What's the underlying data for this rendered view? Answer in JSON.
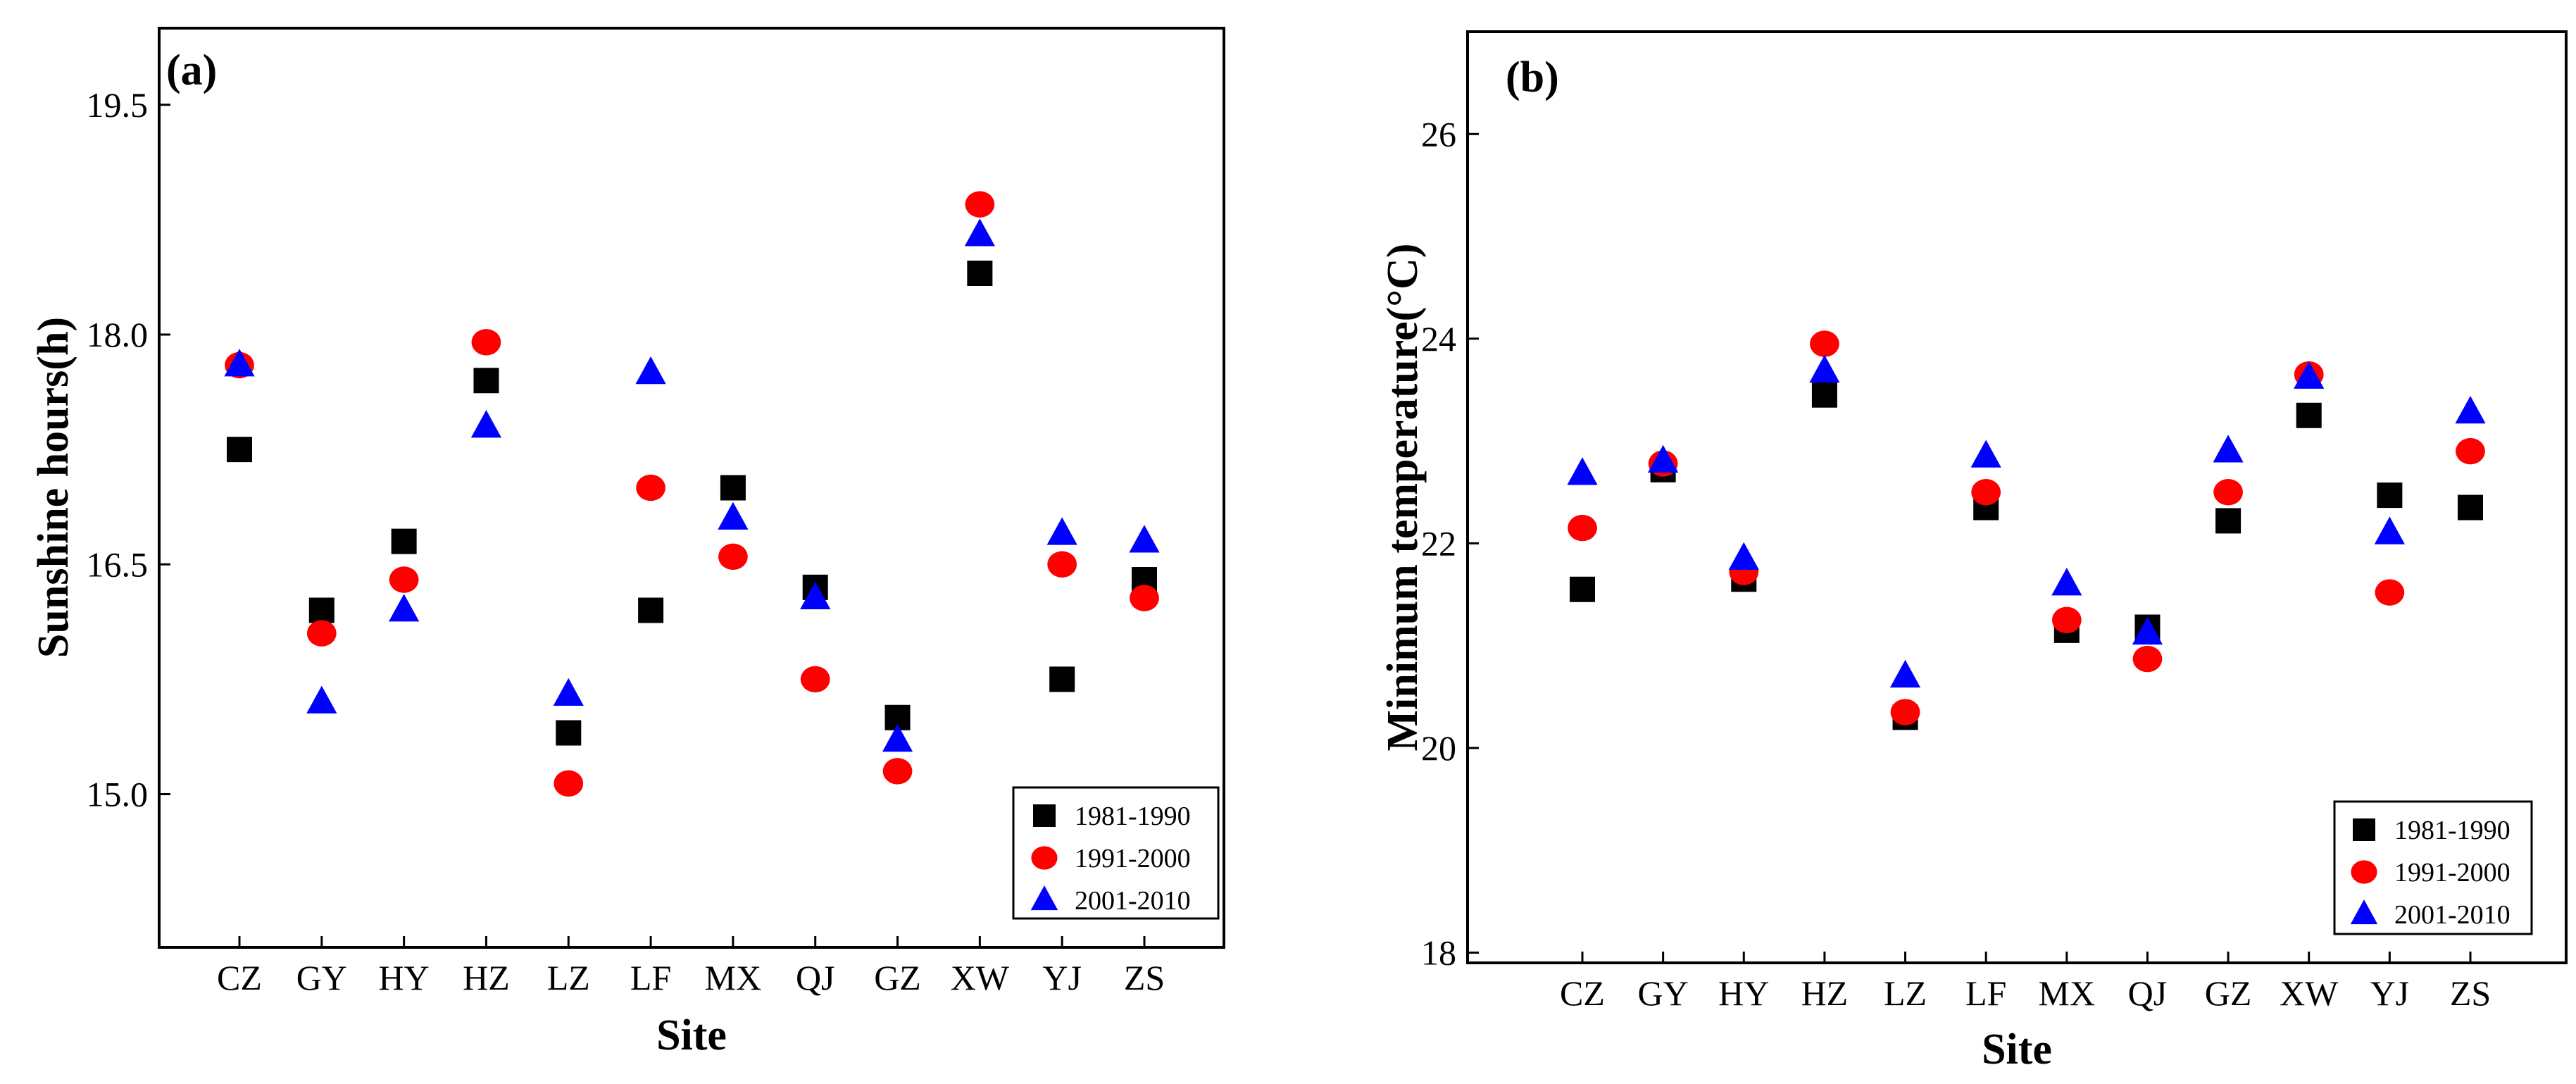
{
  "chart_data": [
    {
      "type": "scatter",
      "panel_label": "(a)",
      "title": "",
      "xlabel": "Site",
      "ylabel": "Sunshine hours(h)",
      "categories": [
        "CZ",
        "GY",
        "HY",
        "HZ",
        "LZ",
        "LF",
        "MX",
        "QJ",
        "GZ",
        "XW",
        "YJ",
        "ZS"
      ],
      "ylim": [
        14.0,
        20.0
      ],
      "yticks": [
        15.0,
        16.5,
        18.0,
        19.5
      ],
      "ytick_labels": [
        "15.0",
        "16.5",
        "18.0",
        "19.5"
      ],
      "grid": false,
      "legend_position": "bottom-right",
      "series": [
        {
          "name": "1981-1990",
          "marker": "square",
          "color": "#000000",
          "values": [
            17.25,
            16.2,
            16.65,
            17.7,
            15.4,
            16.2,
            17.0,
            16.35,
            15.5,
            18.4,
            15.75,
            16.4
          ]
        },
        {
          "name": "1991-2000",
          "marker": "circle",
          "color": "#ff0000",
          "values": [
            17.8,
            16.05,
            16.4,
            17.95,
            15.07,
            17.0,
            16.55,
            15.75,
            15.15,
            18.85,
            16.5,
            16.28
          ]
        },
        {
          "name": "2001-2010",
          "marker": "triangle",
          "color": "#0000ff",
          "values": [
            17.8,
            15.6,
            16.2,
            17.4,
            15.65,
            17.75,
            16.8,
            16.28,
            15.35,
            18.65,
            16.7,
            16.65
          ]
        }
      ]
    },
    {
      "type": "scatter",
      "panel_label": "(b)",
      "title": "",
      "xlabel": "Site",
      "ylabel": "Minimum temperature(°C)",
      "categories": [
        "CZ",
        "GY",
        "HY",
        "HZ",
        "LZ",
        "LF",
        "MX",
        "QJ",
        "GZ",
        "XW",
        "YJ",
        "ZS"
      ],
      "ylim": [
        17.9,
        27.0
      ],
      "yticks": [
        18,
        20,
        22,
        24,
        26
      ],
      "ytick_labels": [
        "18",
        "20",
        "22",
        "24",
        "26"
      ],
      "grid": false,
      "legend_position": "bottom-right",
      "series": [
        {
          "name": "1981-1990",
          "marker": "square",
          "color": "#000000",
          "values": [
            21.55,
            22.72,
            21.65,
            23.45,
            20.3,
            22.35,
            21.15,
            21.18,
            22.22,
            23.25,
            22.47,
            22.35
          ]
        },
        {
          "name": "1991-2000",
          "marker": "circle",
          "color": "#ff0000",
          "values": [
            22.15,
            22.78,
            21.72,
            23.95,
            20.35,
            22.5,
            21.25,
            20.87,
            22.5,
            23.65,
            21.52,
            22.9
          ]
        },
        {
          "name": "2001-2010",
          "marker": "triangle",
          "color": "#0000ff",
          "values": [
            22.68,
            22.8,
            21.85,
            23.68,
            20.7,
            22.85,
            21.6,
            21.12,
            22.9,
            23.62,
            22.1,
            23.28
          ]
        }
      ]
    }
  ]
}
